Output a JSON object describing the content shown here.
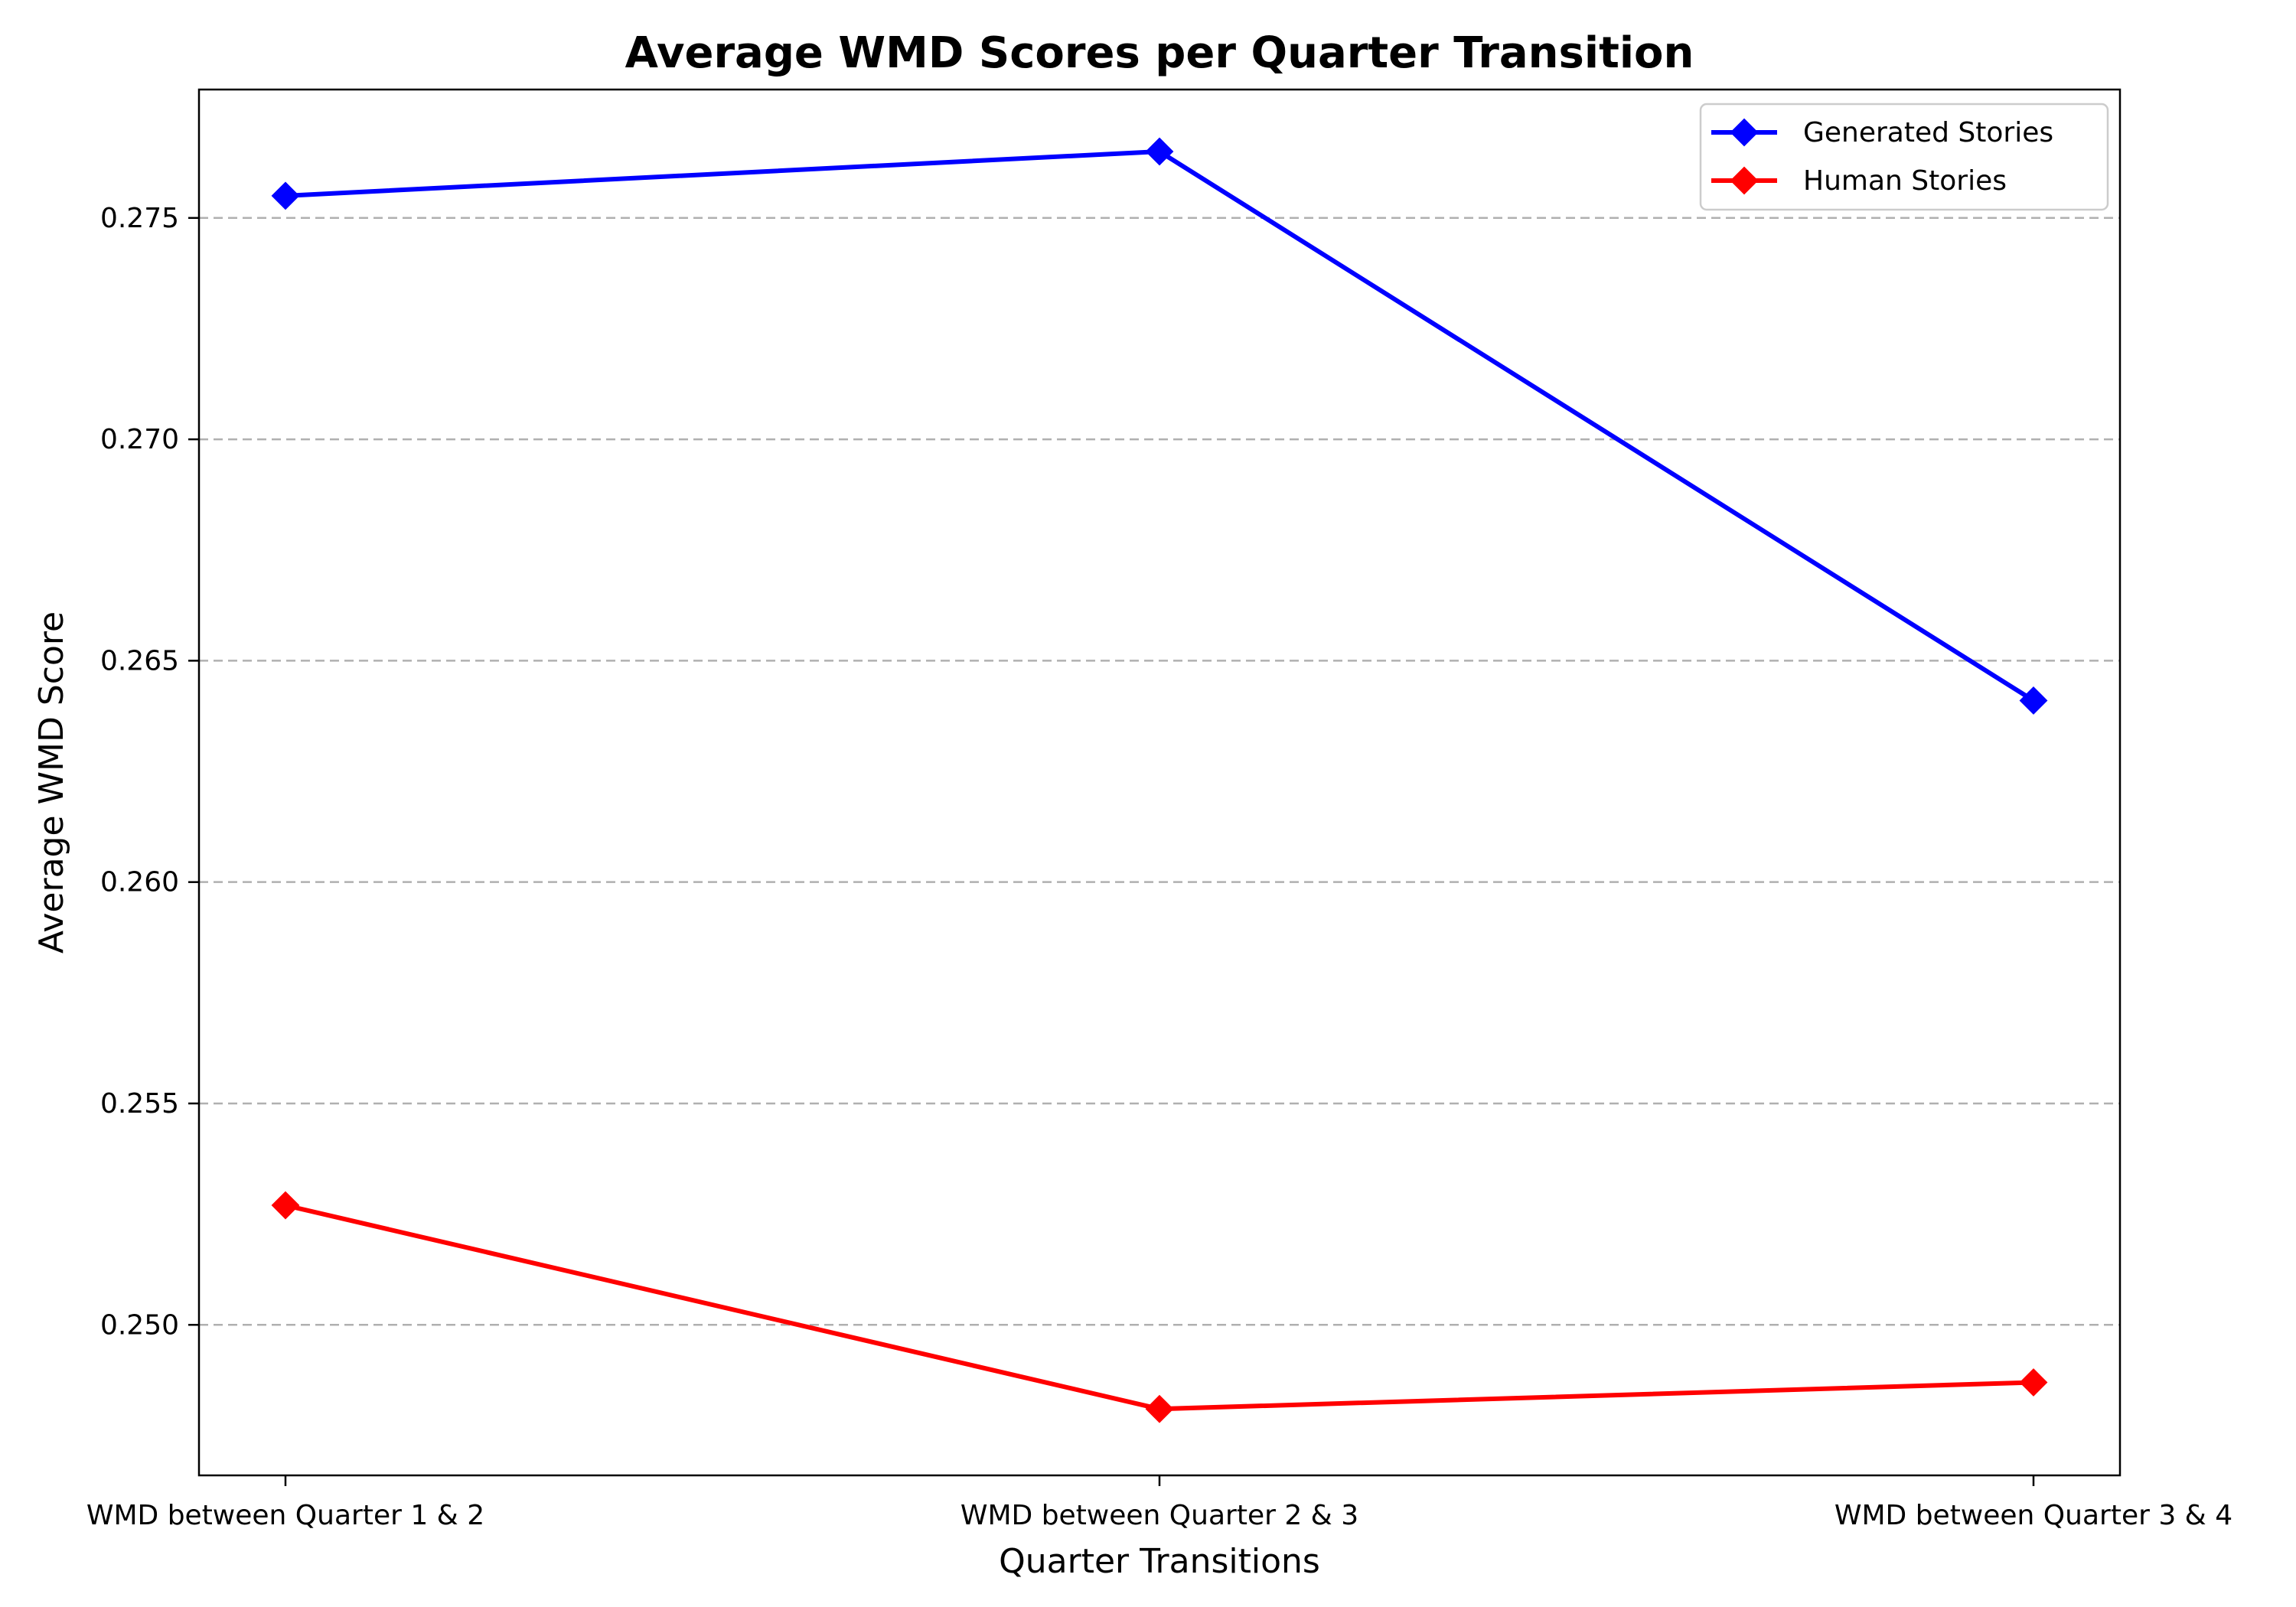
{
  "chart_data": {
    "type": "line",
    "title": "Average WMD Scores per Quarter Transition",
    "xlabel": "Quarter Transitions",
    "ylabel": "Average WMD Score",
    "categories": [
      "WMD between Quarter 1 & 2",
      "WMD between Quarter 2 & 3",
      "WMD between Quarter 3 & 4"
    ],
    "series": [
      {
        "name": "Generated Stories",
        "color": "#0000ff",
        "marker": "diamond",
        "values": [
          0.2755,
          0.2765,
          0.2641
        ]
      },
      {
        "name": "Human Stories",
        "color": "#ff0000",
        "marker": "diamond",
        "values": [
          0.2527,
          0.2481,
          0.2487
        ]
      }
    ],
    "ylim": [
      0.2466,
      0.2779
    ],
    "yticks": [
      0.25,
      0.255,
      0.26,
      0.265,
      0.27,
      0.275
    ],
    "ytick_labels": [
      "0.250",
      "0.255",
      "0.260",
      "0.265",
      "0.270",
      "0.275"
    ],
    "grid": {
      "axis": "y",
      "style": "dashed"
    },
    "legend": {
      "placement": "top-right"
    }
  }
}
